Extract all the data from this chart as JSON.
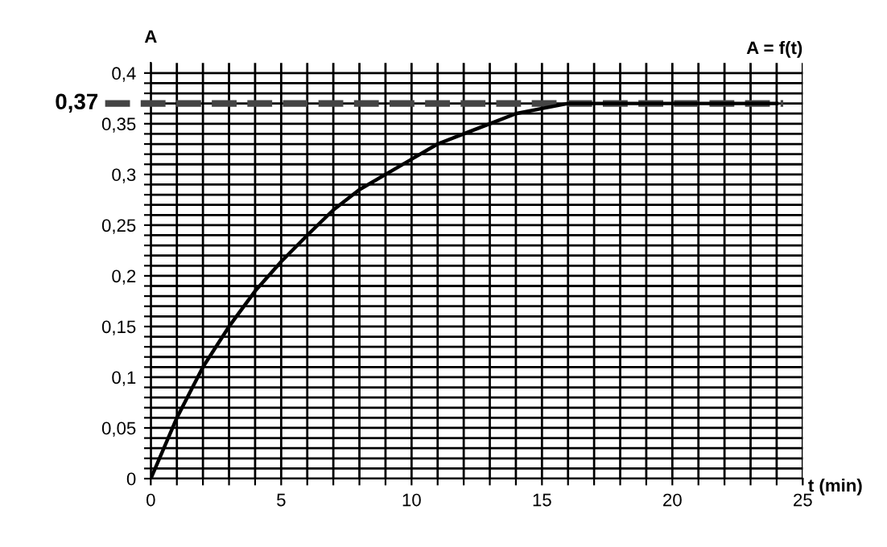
{
  "chart_data": {
    "type": "line",
    "title": "A = f(t)",
    "xlabel": "t (min)",
    "ylabel": "A",
    "x": [
      0,
      1,
      2,
      3,
      4,
      5,
      6,
      7,
      8,
      9,
      10,
      11,
      12,
      13,
      14,
      15,
      16,
      18,
      20,
      22,
      24
    ],
    "series": [
      {
        "color": "#000000",
        "values": [
          0,
          0.06,
          0.11,
          0.15,
          0.185,
          0.214,
          0.24,
          0.265,
          0.285,
          0.3,
          0.315,
          0.33,
          0.34,
          0.35,
          0.36,
          0.365,
          0.37,
          0.37,
          0.37,
          0.37,
          0.37
        ]
      }
    ],
    "xlim": [
      0,
      25
    ],
    "ylim": [
      0,
      0.41
    ],
    "xticks": [
      0,
      {
        "value": 1,
        "label": null
      },
      {
        "value": 2,
        "label": null
      },
      {
        "value": 3,
        "label": null
      },
      {
        "value": 4,
        "label": null
      },
      5,
      {
        "value": 6,
        "label": null
      },
      {
        "value": 7,
        "label": null
      },
      {
        "value": 8,
        "label": null
      },
      {
        "value": 9,
        "label": null
      },
      10,
      {
        "value": 11,
        "label": null
      },
      {
        "value": 12,
        "label": null
      },
      {
        "value": 13,
        "label": null
      },
      {
        "value": 14,
        "label": null
      },
      15,
      {
        "value": 16,
        "label": null
      },
      {
        "value": 17,
        "label": null
      },
      {
        "value": 18,
        "label": null
      },
      {
        "value": 19,
        "label": null
      },
      20,
      {
        "value": 21,
        "label": null
      },
      {
        "value": 22,
        "label": null
      },
      {
        "value": 23,
        "label": null
      },
      {
        "value": 24,
        "label": null
      },
      25
    ],
    "yticks": [
      0,
      {
        "value": 0.01,
        "label": null
      },
      {
        "value": 0.02,
        "label": null
      },
      {
        "value": 0.03,
        "label": null
      },
      {
        "value": 0.04,
        "label": null
      },
      {
        "value": 0.05,
        "label": "0,05"
      },
      {
        "value": 0.06,
        "label": null
      },
      {
        "value": 0.07,
        "label": null
      },
      {
        "value": 0.08,
        "label": null
      },
      {
        "value": 0.09,
        "label": null
      },
      {
        "value": 0.1,
        "label": "0,1"
      },
      {
        "value": 0.11,
        "label": null
      },
      {
        "value": 0.12,
        "label": null
      },
      {
        "value": 0.13,
        "label": null
      },
      {
        "value": 0.14,
        "label": null
      },
      {
        "value": 0.15,
        "label": "0,15"
      },
      {
        "value": 0.16,
        "label": null
      },
      {
        "value": 0.17,
        "label": null
      },
      {
        "value": 0.18,
        "label": null
      },
      {
        "value": 0.19,
        "label": null
      },
      {
        "value": 0.2,
        "label": "0,2"
      },
      {
        "value": 0.21,
        "label": null
      },
      {
        "value": 0.22,
        "label": null
      },
      {
        "value": 0.23,
        "label": null
      },
      {
        "value": 0.24,
        "label": null
      },
      {
        "value": 0.25,
        "label": "0,25"
      },
      {
        "value": 0.26,
        "label": null
      },
      {
        "value": 0.27,
        "label": null
      },
      {
        "value": 0.28,
        "label": null
      },
      {
        "value": 0.29,
        "label": null
      },
      {
        "value": 0.3,
        "label": "0,3"
      },
      {
        "value": 0.31,
        "label": null
      },
      {
        "value": 0.32,
        "label": null
      },
      {
        "value": 0.33,
        "label": null
      },
      {
        "value": 0.34,
        "label": null
      },
      {
        "value": 0.35,
        "label": "0,35"
      },
      {
        "value": 0.36,
        "label": null
      },
      {
        "value": 0.37,
        "label": null
      },
      {
        "value": 0.38,
        "label": null
      },
      {
        "value": 0.39,
        "label": null
      },
      {
        "value": 0.4,
        "label": "0,4"
      }
    ],
    "ref_lines": [
      {
        "axis": "y",
        "value": 0.37,
        "label": "0,37",
        "color": "#444444",
        "line_style": "dashed"
      }
    ],
    "grid": true,
    "line_style": "solid",
    "marker": "none"
  }
}
